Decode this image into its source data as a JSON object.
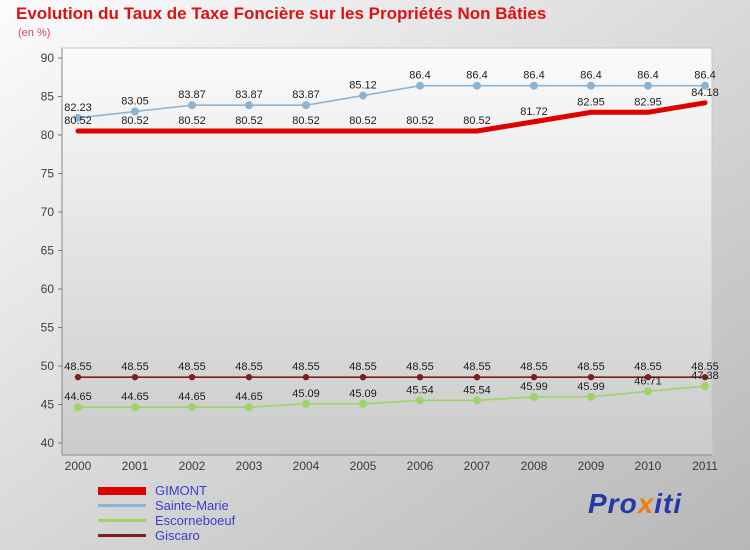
{
  "title": "Evolution du Taux de Taxe Foncière sur les Propriétés Non Bâties",
  "subtitle": "(en %)",
  "chart_data": {
    "type": "line",
    "x": [
      2000,
      2001,
      2002,
      2003,
      2004,
      2005,
      2006,
      2007,
      2008,
      2009,
      2010,
      2011
    ],
    "ylim": [
      40,
      90
    ],
    "yticks": [
      40,
      45,
      50,
      55,
      60,
      65,
      70,
      75,
      80,
      85,
      90
    ],
    "grid": false,
    "legend_position": "bottom-left",
    "title": "Evolution du Taux de Taxe Foncière sur les Propriétés Non Bâties",
    "ylabel": "en %",
    "series": [
      {
        "name": "GIMONT",
        "color": "#e00000",
        "line_width": 5,
        "marker_radius": 0,
        "values": [
          80.52,
          80.52,
          80.52,
          80.52,
          80.52,
          80.52,
          80.52,
          80.52,
          81.72,
          82.95,
          82.95,
          84.18
        ]
      },
      {
        "name": "Sainte-Marie",
        "color": "#8cb4d2",
        "line_width": 1.6,
        "marker_radius": 4,
        "values": [
          82.23,
          83.05,
          83.87,
          83.87,
          83.87,
          85.12,
          86.4,
          86.4,
          86.4,
          86.4,
          86.4,
          86.4
        ]
      },
      {
        "name": "Escorneboeuf",
        "color": "#9ed36a",
        "line_width": 1.6,
        "marker_radius": 4,
        "values": [
          44.65,
          44.65,
          44.65,
          44.65,
          45.09,
          45.09,
          45.54,
          45.54,
          45.99,
          45.99,
          46.71,
          47.38
        ]
      },
      {
        "name": "Giscaro",
        "color": "#7e1f1f",
        "line_width": 1.6,
        "marker_radius": 3.2,
        "values": [
          48.55,
          48.55,
          48.55,
          48.55,
          48.55,
          48.55,
          48.55,
          48.55,
          48.55,
          48.55,
          48.55,
          48.55
        ]
      }
    ]
  },
  "logo": {
    "pro": "Pro",
    "x": "x",
    "iti": "iti"
  }
}
